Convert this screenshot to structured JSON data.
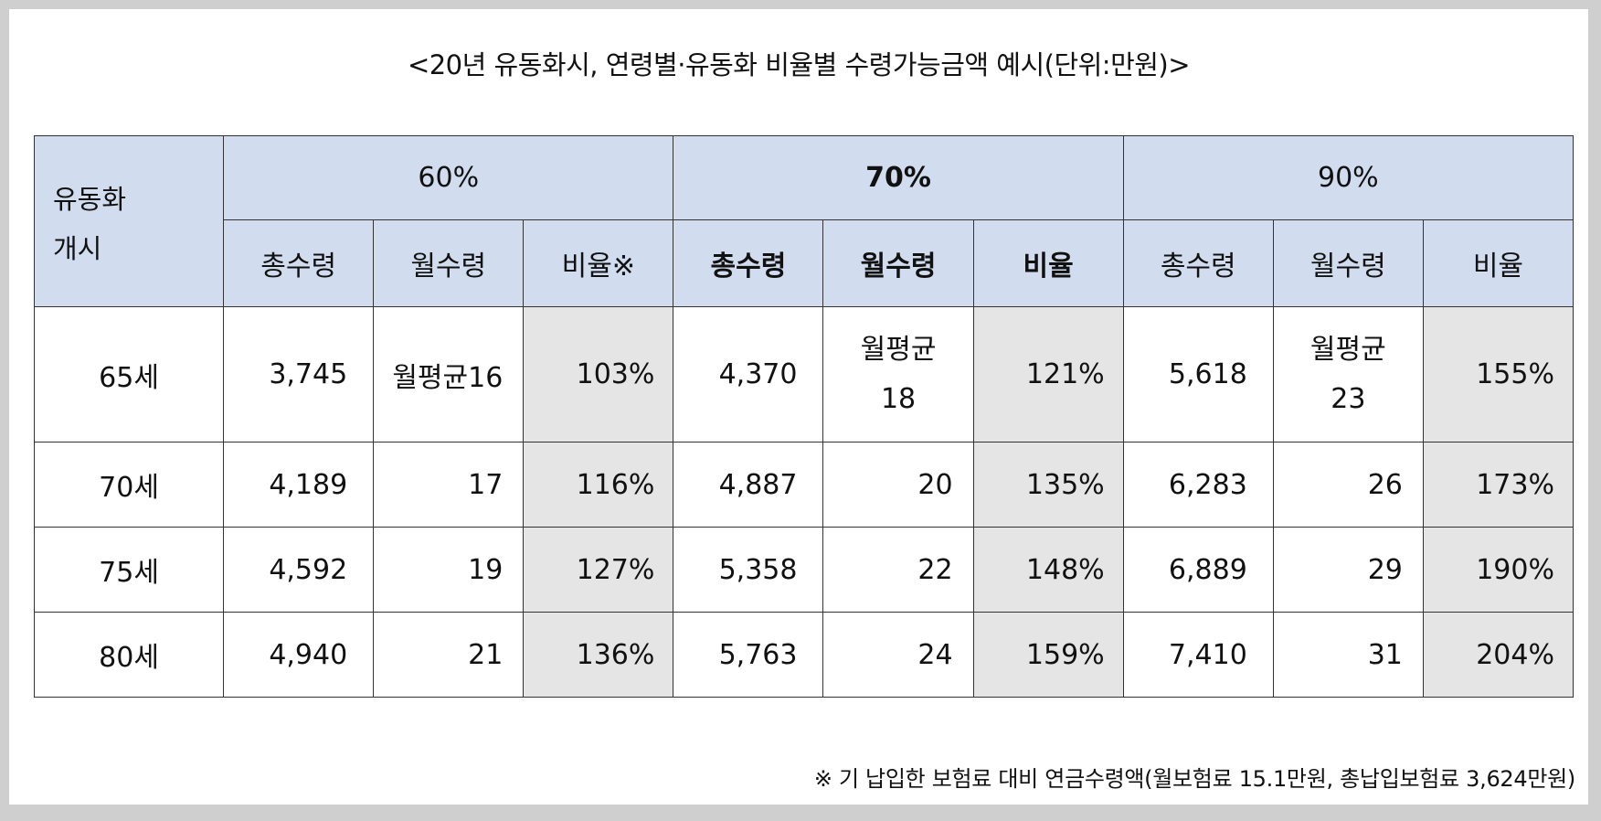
{
  "title": "<20년 유동화시, 연령별·유동화 비율별 수령가능금액 예시(단위:만원)>",
  "header": {
    "age_label_line1": "유동화",
    "age_label_line2": "개시",
    "groups": [
      "60%",
      "70%",
      "90%"
    ],
    "sub": {
      "total": "총수령",
      "monthly": "월수령",
      "ratio_first": "비율※",
      "ratio": "비율"
    }
  },
  "rows": [
    {
      "age": "65세",
      "g60": {
        "total": "3,745",
        "monthly": "월평균16",
        "ratio": "103%"
      },
      "g70": {
        "total": "4,370",
        "monthly_line1": "월평균",
        "monthly_line2": "18",
        "ratio": "121%"
      },
      "g90": {
        "total": "5,618",
        "monthly_line1": "월평균",
        "monthly_line2": "23",
        "ratio": "155%"
      }
    },
    {
      "age": "70세",
      "g60": {
        "total": "4,189",
        "monthly": "17",
        "ratio": "116%"
      },
      "g70": {
        "total": "4,887",
        "monthly": "20",
        "ratio": "135%"
      },
      "g90": {
        "total": "6,283",
        "monthly": "26",
        "ratio": "173%"
      }
    },
    {
      "age": "75세",
      "g60": {
        "total": "4,592",
        "monthly": "19",
        "ratio": "127%"
      },
      "g70": {
        "total": "5,358",
        "monthly": "22",
        "ratio": "148%"
      },
      "g90": {
        "total": "6,889",
        "monthly": "29",
        "ratio": "190%"
      }
    },
    {
      "age": "80세",
      "g60": {
        "total": "4,940",
        "monthly": "21",
        "ratio": "136%"
      },
      "g70": {
        "total": "5,763",
        "monthly": "24",
        "ratio": "159%"
      },
      "g90": {
        "total": "7,410",
        "monthly": "31",
        "ratio": "204%"
      }
    }
  ],
  "footnote": "※ 기 납입한 보험료 대비 연금수령액(월보험료 15.1만원, 총납입보험료 3,624만원)",
  "colors": {
    "header_bg": "#d1ddee",
    "ratio_bg": "#e5e5e5",
    "frame": "#cfcfcf"
  }
}
